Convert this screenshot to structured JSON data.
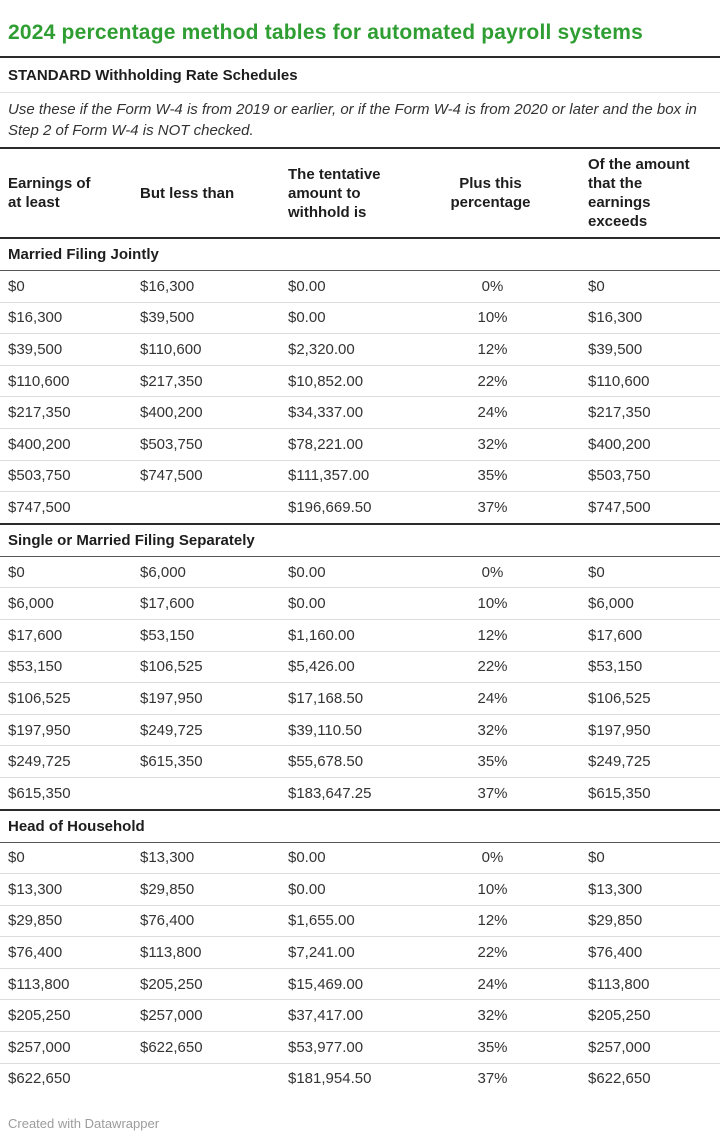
{
  "header": {
    "title": "2024 percentage method tables for automated payroll systems",
    "subtitle": "STANDARD Withholding Rate Schedules",
    "note": "Use these if the Form W-4 is from 2019 or earlier, or if the Form W-4 is from 2020 or later and the box in Step 2 of Form W-4 is NOT checked."
  },
  "footer": {
    "credit": "Created with Datawrapper"
  },
  "colors": {
    "title_green": "#2f9e32",
    "rule_dark": "#2b2b2b",
    "section_underline": "#565656",
    "row_divider": "#dcdcdc",
    "body_text": "#333333",
    "footer_gray": "#9c9c9c"
  },
  "chart_data": {
    "type": "table",
    "title": "2024 percentage method tables for automated payroll systems",
    "subtitle": "STANDARD Withholding Rate Schedules",
    "columns": [
      "Earnings of at least",
      "But less than",
      "The tentative amount to withhold is",
      "Plus this percentage",
      "Of the amount that the earnings exceeds"
    ],
    "sections": [
      {
        "label": "Married Filing Jointly",
        "rows": [
          [
            "$0",
            "$16,300",
            "$0.00",
            "0%",
            "$0"
          ],
          [
            "$16,300",
            "$39,500",
            "$0.00",
            "10%",
            "$16,300"
          ],
          [
            "$39,500",
            "$110,600",
            "$2,320.00",
            "12%",
            "$39,500"
          ],
          [
            "$110,600",
            "$217,350",
            "$10,852.00",
            "22%",
            "$110,600"
          ],
          [
            "$217,350",
            "$400,200",
            "$34,337.00",
            "24%",
            "$217,350"
          ],
          [
            "$400,200",
            "$503,750",
            "$78,221.00",
            "32%",
            "$400,200"
          ],
          [
            "$503,750",
            "$747,500",
            "$111,357.00",
            "35%",
            "$503,750"
          ],
          [
            "$747,500",
            "",
            "$196,669.50",
            "37%",
            "$747,500"
          ]
        ]
      },
      {
        "label": "Single or Married Filing Separately",
        "rows": [
          [
            "$0",
            "$6,000",
            "$0.00",
            "0%",
            "$0"
          ],
          [
            "$6,000",
            "$17,600",
            "$0.00",
            "10%",
            "$6,000"
          ],
          [
            "$17,600",
            "$53,150",
            "$1,160.00",
            "12%",
            "$17,600"
          ],
          [
            "$53,150",
            "$106,525",
            "$5,426.00",
            "22%",
            "$53,150"
          ],
          [
            "$106,525",
            "$197,950",
            "$17,168.50",
            "24%",
            "$106,525"
          ],
          [
            "$197,950",
            "$249,725",
            "$39,110.50",
            "32%",
            "$197,950"
          ],
          [
            "$249,725",
            "$615,350",
            "$55,678.50",
            "35%",
            "$249,725"
          ],
          [
            "$615,350",
            "",
            "$183,647.25",
            "37%",
            "$615,350"
          ]
        ]
      },
      {
        "label": "Head of Household",
        "rows": [
          [
            "$0",
            "$13,300",
            "$0.00",
            "0%",
            "$0"
          ],
          [
            "$13,300",
            "$29,850",
            "$0.00",
            "10%",
            "$13,300"
          ],
          [
            "$29,850",
            "$76,400",
            "$1,655.00",
            "12%",
            "$29,850"
          ],
          [
            "$76,400",
            "$113,800",
            "$7,241.00",
            "22%",
            "$76,400"
          ],
          [
            "$113,800",
            "$205,250",
            "$15,469.00",
            "24%",
            "$113,800"
          ],
          [
            "$205,250",
            "$257,000",
            "$37,417.00",
            "32%",
            "$205,250"
          ],
          [
            "$257,000",
            "$622,650",
            "$53,977.00",
            "35%",
            "$257,000"
          ],
          [
            "$622,650",
            "",
            "$181,954.50",
            "37%",
            "$622,650"
          ]
        ]
      }
    ],
    "layout": {
      "column_alignments": [
        "left",
        "left",
        "left",
        "center",
        "left"
      ],
      "grid": "horizontal-rules-only",
      "legend_position": "none"
    }
  }
}
